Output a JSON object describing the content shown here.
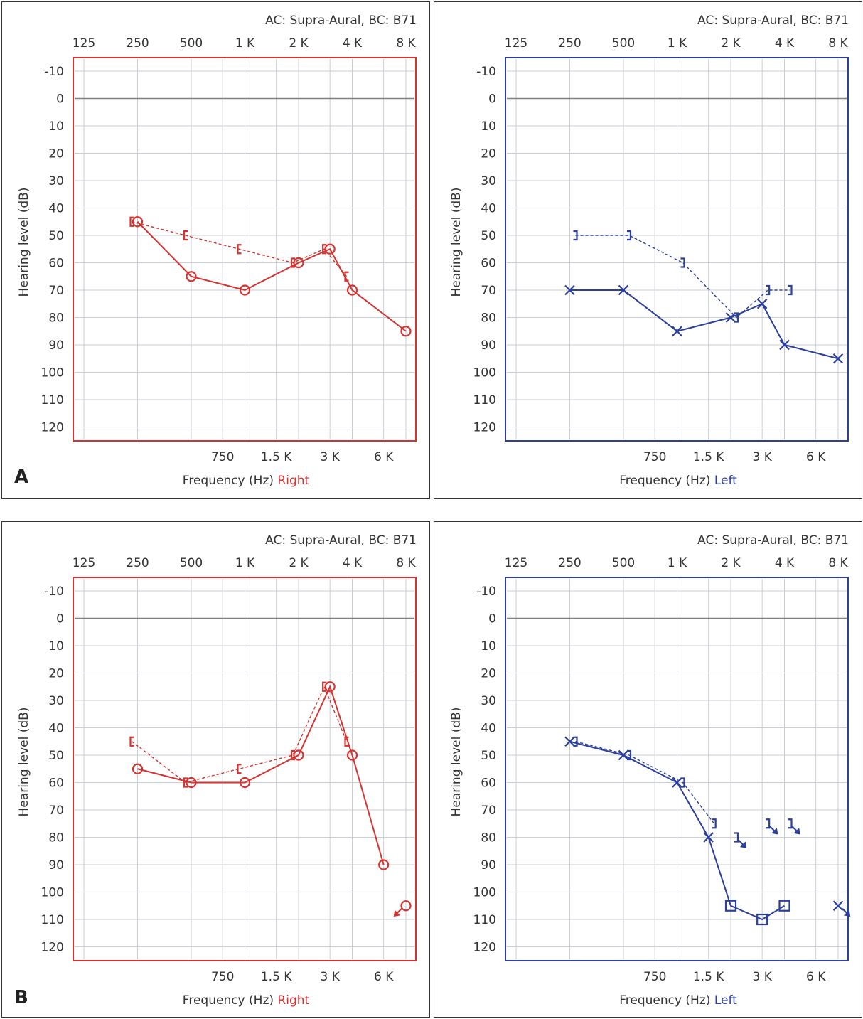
{
  "colors": {
    "right": "#d6322f",
    "left": "#2b3f9c",
    "grid": "#c9cdd3",
    "zero": "#808080",
    "text": "#333333"
  },
  "panel_letters": {
    "a": "A",
    "b": "B"
  },
  "chart_data": [
    {
      "id": "a-right",
      "panel": "A",
      "ear": "right",
      "type": "line",
      "header": "AC: Supra-Aural, BC: B71",
      "ylabel": "Hearing level (dB)",
      "xlabel": "Frequency (Hz)",
      "ear_label": "Right",
      "top_ticks": [
        "125",
        "250",
        "500",
        "1 K",
        "2 K",
        "4 K",
        "8 K"
      ],
      "bottom_ticks": [
        "750",
        "1.5 K",
        "3 K",
        "6 K"
      ],
      "y_ticks": [
        "-10",
        "0",
        "10",
        "20",
        "30",
        "40",
        "50",
        "60",
        "70",
        "80",
        "90",
        "100",
        "110",
        "120"
      ],
      "ylim": [
        -10,
        120
      ],
      "series": [
        {
          "name": "AC",
          "symbol": "O",
          "style": "solid",
          "points": [
            [
              "250",
              45
            ],
            [
              "500",
              65
            ],
            [
              "1000",
              70
            ],
            [
              "2000",
              60
            ],
            [
              "3000",
              55
            ],
            [
              "4000",
              70
            ],
            [
              "8000",
              85
            ]
          ]
        },
        {
          "name": "BC",
          "symbol": "[",
          "style": "dashed",
          "points": [
            [
              "250",
              45
            ],
            [
              "500",
              50
            ],
            [
              "1000",
              55
            ],
            [
              "2000",
              60
            ],
            [
              "3000",
              55
            ],
            [
              "4000",
              65
            ]
          ]
        }
      ]
    },
    {
      "id": "a-left",
      "panel": "A",
      "ear": "left",
      "type": "line",
      "header": "AC: Supra-Aural, BC: B71",
      "ylabel": "Hearing level (dB)",
      "xlabel": "Frequency (Hz)",
      "ear_label": "Left",
      "top_ticks": [
        "125",
        "250",
        "500",
        "1 K",
        "2 K",
        "4 K",
        "8 K"
      ],
      "bottom_ticks": [
        "750",
        "1.5 K",
        "3 K",
        "6 K"
      ],
      "y_ticks": [
        "-10",
        "0",
        "10",
        "20",
        "30",
        "40",
        "50",
        "60",
        "70",
        "80",
        "90",
        "100",
        "110",
        "120"
      ],
      "ylim": [
        -10,
        120
      ],
      "series": [
        {
          "name": "AC",
          "symbol": "X",
          "style": "solid",
          "points": [
            [
              "250",
              70
            ],
            [
              "500",
              70
            ],
            [
              "1000",
              85
            ],
            [
              "2000",
              80
            ],
            [
              "3000",
              75
            ],
            [
              "4000",
              90
            ],
            [
              "8000",
              95
            ]
          ]
        },
        {
          "name": "BC",
          "symbol": "]",
          "style": "dashed",
          "points": [
            [
              "250",
              50
            ],
            [
              "500",
              50
            ],
            [
              "1000",
              60
            ],
            [
              "2000",
              80
            ],
            [
              "3000",
              70
            ],
            [
              "4000",
              70
            ]
          ]
        }
      ]
    },
    {
      "id": "b-right",
      "panel": "B",
      "ear": "right",
      "type": "line",
      "header": "AC: Supra-Aural, BC: B71",
      "ylabel": "Hearing level (dB)",
      "xlabel": "Frequency (Hz)",
      "ear_label": "Right",
      "top_ticks": [
        "125",
        "250",
        "500",
        "1 K",
        "2 K",
        "4 K",
        "8 K"
      ],
      "bottom_ticks": [
        "750",
        "1.5 K",
        "3 K",
        "6 K"
      ],
      "y_ticks": [
        "-10",
        "0",
        "10",
        "20",
        "30",
        "40",
        "50",
        "60",
        "70",
        "80",
        "90",
        "100",
        "110",
        "120"
      ],
      "ylim": [
        -10,
        120
      ],
      "series": [
        {
          "name": "AC",
          "symbol": "O",
          "style": "solid",
          "points": [
            [
              "250",
              55
            ],
            [
              "500",
              60
            ],
            [
              "1000",
              60
            ],
            [
              "2000",
              50
            ],
            [
              "3000",
              25
            ],
            [
              "4000",
              50
            ],
            [
              "6000",
              90
            ],
            [
              "8000",
              105
            ]
          ],
          "no_response_from": "8000"
        },
        {
          "name": "BC",
          "symbol": "[",
          "style": "dashed",
          "points": [
            [
              "250",
              45
            ],
            [
              "500",
              60
            ],
            [
              "1000",
              55
            ],
            [
              "2000",
              50
            ],
            [
              "3000",
              25
            ],
            [
              "4000",
              45
            ]
          ]
        }
      ]
    },
    {
      "id": "b-left",
      "panel": "B",
      "ear": "left",
      "type": "line",
      "header": "AC: Supra-Aural, BC: B71",
      "ylabel": "Hearing level (dB)",
      "xlabel": "Frequency (Hz)",
      "ear_label": "Left",
      "top_ticks": [
        "125",
        "250",
        "500",
        "1 K",
        "2 K",
        "4 K",
        "8 K"
      ],
      "bottom_ticks": [
        "750",
        "1.5 K",
        "3 K",
        "6 K"
      ],
      "y_ticks": [
        "-10",
        "0",
        "10",
        "20",
        "30",
        "40",
        "50",
        "60",
        "70",
        "80",
        "90",
        "100",
        "110",
        "120"
      ],
      "ylim": [
        -10,
        120
      ],
      "series": [
        {
          "name": "AC",
          "symbol": "X",
          "style": "solid",
          "points": [
            [
              "250",
              45
            ],
            [
              "500",
              50
            ],
            [
              "1000",
              60
            ],
            [
              "1500",
              80
            ],
            [
              "2000",
              105
            ],
            [
              "3000",
              110
            ],
            [
              "4000",
              105
            ],
            [
              "8000",
              105
            ]
          ],
          "masked_from": [
            "2000",
            "3000",
            "4000"
          ],
          "no_response_from": "8000"
        },
        {
          "name": "BC",
          "symbol": "]",
          "style": "dashed",
          "points": [
            [
              "250",
              45
            ],
            [
              "500",
              50
            ],
            [
              "1000",
              60
            ],
            [
              "1500",
              75
            ],
            [
              "2000",
              80
            ],
            [
              "3000",
              75
            ],
            [
              "4000",
              75
            ]
          ],
          "connect_until": "1500",
          "no_response_at": [
            "2000",
            "3000",
            "4000"
          ]
        }
      ]
    }
  ]
}
